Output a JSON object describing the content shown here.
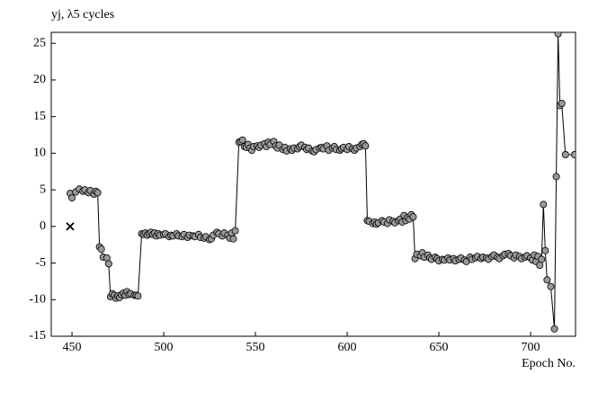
{
  "chart_data": {
    "type": "line",
    "ylabel": "yj, λ5 cycles",
    "xlabel": "Epoch No.",
    "xlim": [
      438.7,
      724.5
    ],
    "ylim": [
      -15,
      26.5
    ],
    "xticks": [
      450,
      500,
      550,
      600,
      650,
      700
    ],
    "yticks": [
      -15,
      -10,
      -5,
      0,
      5,
      10,
      15,
      20,
      25
    ],
    "series": [
      {
        "color": "#999999",
        "marker": "circle",
        "x": [
          449,
          450,
          452,
          454,
          456,
          457,
          459,
          460,
          462,
          463,
          464,
          465,
          466,
          467,
          469,
          470,
          471,
          472,
          473,
          474,
          475,
          476,
          477,
          478,
          479,
          480,
          481,
          482,
          484,
          485,
          486,
          488,
          489,
          490,
          491,
          492,
          493,
          494,
          495,
          496,
          497,
          498,
          500,
          501,
          503,
          504,
          505,
          507,
          508,
          510,
          511,
          513,
          514,
          516,
          517,
          519,
          520,
          522,
          523,
          525,
          526,
          527,
          529,
          530,
          532,
          533,
          535,
          536,
          537,
          538,
          539,
          541,
          542,
          543,
          544,
          545,
          546,
          547,
          548,
          549,
          551,
          552,
          553,
          555,
          556,
          557,
          558,
          560,
          561,
          562,
          563,
          565,
          566,
          567,
          569,
          570,
          571,
          573,
          574,
          575,
          577,
          578,
          579,
          581,
          582,
          583,
          585,
          586,
          587,
          589,
          590,
          592,
          593,
          594,
          596,
          597,
          598,
          600,
          601,
          603,
          604,
          605,
          607,
          608,
          609,
          610,
          611,
          612,
          614,
          615,
          616,
          617,
          619,
          620,
          622,
          623,
          625,
          626,
          628,
          629,
          630,
          631,
          632,
          633,
          634,
          635,
          636,
          637,
          638,
          640,
          641,
          642,
          644,
          645,
          646,
          648,
          649,
          650,
          652,
          653,
          655,
          656,
          658,
          659,
          661,
          662,
          664,
          665,
          667,
          668,
          670,
          671,
          673,
          674,
          676,
          677,
          679,
          680,
          682,
          683,
          685,
          686,
          688,
          689,
          691,
          692,
          694,
          695,
          697,
          698,
          700,
          701,
          702,
          703,
          704,
          705,
          706,
          707,
          708,
          709,
          711,
          713,
          714,
          715,
          716,
          717,
          719,
          724
        ],
        "values": [
          4.5,
          3.9,
          4.7,
          5.1,
          4.8,
          5.0,
          4.6,
          4.9,
          4.4,
          4.8,
          4.6,
          -2.8,
          -3.1,
          -4.2,
          -4.3,
          -5.1,
          -9.6,
          -9.2,
          -9.4,
          -9.8,
          -9.5,
          -9.7,
          -9.3,
          -9.1,
          -9.4,
          -8.9,
          -9.3,
          -9.2,
          -9.4,
          -9.4,
          -9.5,
          -1.0,
          -1.1,
          -0.9,
          -1.2,
          -1.0,
          -0.8,
          -1.1,
          -0.9,
          -1.3,
          -1.0,
          -1.2,
          -1.1,
          -1.0,
          -1.4,
          -1.2,
          -1.3,
          -1.0,
          -1.3,
          -1.4,
          -1.1,
          -1.5,
          -1.2,
          -1.3,
          -1.4,
          -1.1,
          -1.5,
          -1.6,
          -1.4,
          -1.8,
          -1.7,
          -1.2,
          -0.8,
          -1.0,
          -1.3,
          -0.9,
          -1.2,
          -1.6,
          -0.9,
          -1.7,
          -0.6,
          11.5,
          11.6,
          11.8,
          10.9,
          10.8,
          11.2,
          10.7,
          10.4,
          10.9,
          11.0,
          10.8,
          11.1,
          11.3,
          10.9,
          11.5,
          11.2,
          11.6,
          11.0,
          10.7,
          11.1,
          10.5,
          10.8,
          10.3,
          10.6,
          10.4,
          10.7,
          10.6,
          10.9,
          11.1,
          10.8,
          10.5,
          10.7,
          10.3,
          10.2,
          10.5,
          10.7,
          10.8,
          10.6,
          11.0,
          10.4,
          10.7,
          10.9,
          10.5,
          10.4,
          10.6,
          10.8,
          10.5,
          10.9,
          10.6,
          10.4,
          10.7,
          10.9,
          11.2,
          11.3,
          11.0,
          0.8,
          0.7,
          0.4,
          0.6,
          0.3,
          0.5,
          0.8,
          0.6,
          0.4,
          0.9,
          0.7,
          0.5,
          0.8,
          1.0,
          0.6,
          1.5,
          0.8,
          1.2,
          1.0,
          1.6,
          1.3,
          -4.4,
          -3.8,
          -4.0,
          -3.6,
          -4.2,
          -3.9,
          -4.3,
          -4.5,
          -4.2,
          -4.4,
          -4.7,
          -4.5,
          -4.6,
          -4.3,
          -4.6,
          -4.4,
          -4.7,
          -4.5,
          -4.3,
          -4.6,
          -4.8,
          -4.2,
          -4.5,
          -4.3,
          -4.1,
          -4.4,
          -4.2,
          -4.3,
          -4.5,
          -4.1,
          -3.9,
          -4.2,
          -4.4,
          -4.0,
          -3.8,
          -3.7,
          -4.0,
          -4.3,
          -3.9,
          -4.1,
          -4.4,
          -4.2,
          -4.0,
          -4.3,
          -4.6,
          -3.9,
          -4.8,
          -4.1,
          -5.3,
          -4.5,
          3.0,
          -3.3,
          -7.3,
          -8.2,
          -14.0,
          6.8,
          26.3,
          16.5,
          16.8,
          9.8,
          9.8
        ]
      },
      {
        "color": "#000000",
        "marker": "cross",
        "x": [
          449
        ],
        "values": [
          0
        ]
      }
    ]
  }
}
